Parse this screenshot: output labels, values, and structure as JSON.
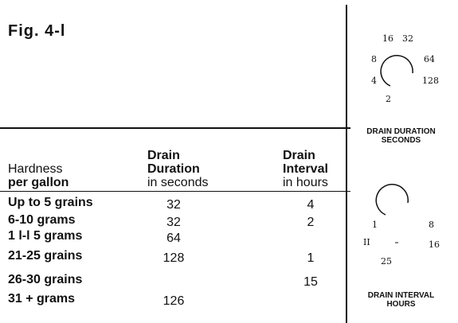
{
  "header": {
    "title": "Fig. 4-l"
  },
  "table": {
    "headers": [
      [
        "Hardness",
        "per gallon"
      ],
      [
        "Drain",
        "Duration",
        "in seconds"
      ],
      [
        "Drain",
        "Interval",
        "in hours"
      ]
    ],
    "rows": [
      [
        "Up to 5 grains",
        "32",
        "4"
      ],
      [
        "6-10 grams",
        "32",
        "2"
      ],
      [
        "1 l-l 5 grams",
        "64",
        null
      ],
      [
        "21-25 grains",
        "128",
        "1"
      ],
      [
        "26-30 grains",
        null,
        "15"
      ],
      [
        "31 + grams",
        "126",
        null
      ]
    ]
  },
  "dials": [
    {
      "labels": [
        "16",
        "32",
        "8",
        "64",
        "4",
        "128",
        "2"
      ],
      "caption": [
        "DRAIN DURATION",
        "SECONDS"
      ]
    },
    {
      "labels": [
        "1",
        "8",
        "II",
        "16",
        "25"
      ],
      "caption": [
        "DRAIN INTERVAL",
        "HOURS"
      ]
    }
  ]
}
